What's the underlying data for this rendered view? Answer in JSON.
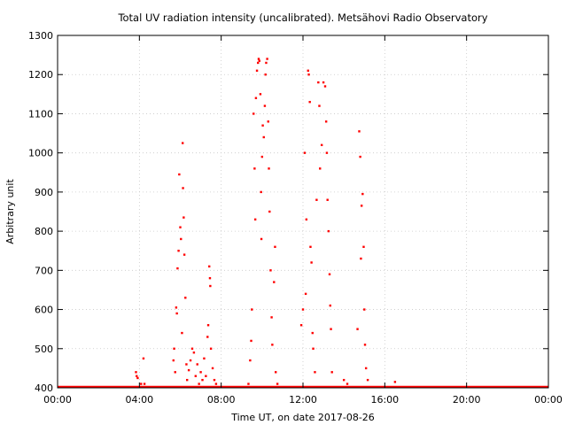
{
  "chart_data": {
    "type": "scatter",
    "title": "Total UV radiation intensity (uncalibrated). Metsähovi Radio Observatory",
    "xlabel": "Time UT, on date 2017-08-26",
    "ylabel": "Arbitrary unit",
    "xlim": [
      "00:00",
      "24:00"
    ],
    "ylim": [
      400,
      1300
    ],
    "x_ticks": [
      "00:00",
      "04:00",
      "08:00",
      "12:00",
      "16:00",
      "20:00",
      "00:00"
    ],
    "y_ticks": [
      "400",
      "500",
      "600",
      "700",
      "800",
      "900",
      "1000",
      "1100",
      "1200",
      "1300"
    ],
    "grid": true,
    "baseline": {
      "x_start": "00:00",
      "x_end": "24:00",
      "y": 400
    },
    "series": [
      {
        "color": "#ff0000",
        "points": [
          [
            "03:50",
            440
          ],
          [
            "03:52",
            430
          ],
          [
            "03:55",
            425
          ],
          [
            "04:05",
            410
          ],
          [
            "04:12",
            475
          ],
          [
            "04:15",
            410
          ],
          [
            "05:40",
            470
          ],
          [
            "05:42",
            500
          ],
          [
            "05:45",
            440
          ],
          [
            "05:48",
            605
          ],
          [
            "05:50",
            590
          ],
          [
            "05:52",
            705
          ],
          [
            "05:55",
            750
          ],
          [
            "05:57",
            945
          ],
          [
            "06:00",
            810
          ],
          [
            "06:02",
            780
          ],
          [
            "06:05",
            540
          ],
          [
            "06:07",
            1025
          ],
          [
            "06:08",
            910
          ],
          [
            "06:10",
            835
          ],
          [
            "06:12",
            740
          ],
          [
            "06:15",
            630
          ],
          [
            "06:18",
            460
          ],
          [
            "06:20",
            420
          ],
          [
            "06:25",
            445
          ],
          [
            "06:30",
            470
          ],
          [
            "06:35",
            500
          ],
          [
            "06:40",
            490
          ],
          [
            "06:45",
            430
          ],
          [
            "06:50",
            460
          ],
          [
            "06:55",
            410
          ],
          [
            "07:00",
            440
          ],
          [
            "07:05",
            420
          ],
          [
            "07:10",
            475
          ],
          [
            "07:15",
            430
          ],
          [
            "07:20",
            530
          ],
          [
            "07:22",
            560
          ],
          [
            "07:25",
            710
          ],
          [
            "07:27",
            680
          ],
          [
            "07:28",
            660
          ],
          [
            "07:30",
            500
          ],
          [
            "07:35",
            450
          ],
          [
            "07:40",
            420
          ],
          [
            "07:45",
            410
          ],
          [
            "09:20",
            410
          ],
          [
            "09:25",
            470
          ],
          [
            "09:28",
            520
          ],
          [
            "09:30",
            600
          ],
          [
            "09:35",
            1100
          ],
          [
            "09:38",
            960
          ],
          [
            "09:40",
            830
          ],
          [
            "09:42",
            1140
          ],
          [
            "09:45",
            1210
          ],
          [
            "09:48",
            1230
          ],
          [
            "09:50",
            1240
          ],
          [
            "09:52",
            1235
          ],
          [
            "09:55",
            1150
          ],
          [
            "09:57",
            900
          ],
          [
            "09:58",
            780
          ],
          [
            "10:00",
            990
          ],
          [
            "10:02",
            1070
          ],
          [
            "10:05",
            1040
          ],
          [
            "10:08",
            1120
          ],
          [
            "10:10",
            1200
          ],
          [
            "10:12",
            1230
          ],
          [
            "10:15",
            1240
          ],
          [
            "10:18",
            1080
          ],
          [
            "10:20",
            960
          ],
          [
            "10:22",
            850
          ],
          [
            "10:25",
            700
          ],
          [
            "10:28",
            580
          ],
          [
            "10:30",
            510
          ],
          [
            "10:35",
            670
          ],
          [
            "10:38",
            760
          ],
          [
            "10:40",
            440
          ],
          [
            "10:45",
            410
          ],
          [
            "11:55",
            560
          ],
          [
            "12:00",
            600
          ],
          [
            "12:05",
            1000
          ],
          [
            "12:08",
            640
          ],
          [
            "12:10",
            830
          ],
          [
            "12:15",
            1210
          ],
          [
            "12:17",
            1200
          ],
          [
            "12:20",
            1130
          ],
          [
            "12:22",
            760
          ],
          [
            "12:25",
            720
          ],
          [
            "12:28",
            540
          ],
          [
            "12:30",
            500
          ],
          [
            "12:35",
            440
          ],
          [
            "12:40",
            880
          ],
          [
            "12:45",
            1180
          ],
          [
            "12:48",
            1120
          ],
          [
            "12:50",
            960
          ],
          [
            "12:55",
            1020
          ],
          [
            "13:00",
            1180
          ],
          [
            "13:05",
            1170
          ],
          [
            "13:08",
            1080
          ],
          [
            "13:10",
            1000
          ],
          [
            "13:12",
            880
          ],
          [
            "13:15",
            800
          ],
          [
            "13:18",
            690
          ],
          [
            "13:20",
            610
          ],
          [
            "13:22",
            550
          ],
          [
            "13:25",
            440
          ],
          [
            "14:00",
            420
          ],
          [
            "14:10",
            410
          ],
          [
            "14:40",
            550
          ],
          [
            "14:45",
            1055
          ],
          [
            "14:48",
            990
          ],
          [
            "14:50",
            730
          ],
          [
            "14:52",
            865
          ],
          [
            "14:55",
            895
          ],
          [
            "14:58",
            760
          ],
          [
            "15:00",
            600
          ],
          [
            "15:02",
            510
          ],
          [
            "15:05",
            450
          ],
          [
            "15:10",
            420
          ],
          [
            "16:30",
            415
          ]
        ]
      }
    ]
  }
}
